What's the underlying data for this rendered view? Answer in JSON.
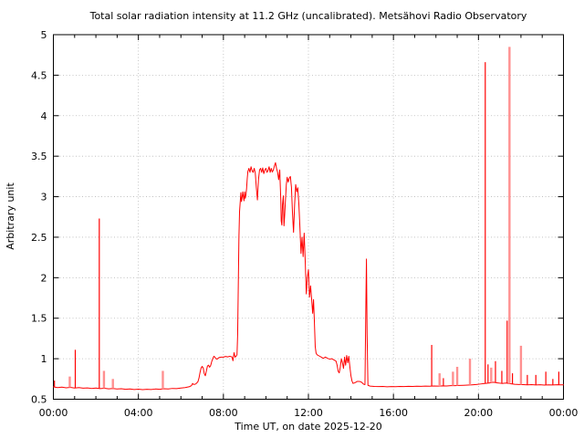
{
  "chart_data": {
    "type": "line",
    "title": "Total solar radiation intensity at 11.2 GHz (uncalibrated). Metsähovi Radio Observatory",
    "xlabel": "Time UT, on date 2025-12-20",
    "ylabel": "Arbitrary unit",
    "x_range_hours": [
      0,
      24
    ],
    "ylim": [
      0.5,
      5
    ],
    "x_tick_hours": [
      0,
      4,
      8,
      12,
      16,
      20,
      24
    ],
    "x_tick_labels": [
      "00:00",
      "04:00",
      "08:00",
      "12:00",
      "16:00",
      "20:00",
      "00:00"
    ],
    "x_minor_tick_every_hours": 1,
    "y_ticks": [
      0.5,
      1,
      1.5,
      2,
      2.5,
      3,
      3.5,
      4,
      4.5,
      5
    ],
    "y_tick_labels": [
      "0.5",
      "1",
      "1.5",
      "2",
      "2.5",
      "3",
      "3.5",
      "4",
      "4.5",
      "5"
    ],
    "grid": "dotted",
    "legend": "none",
    "line_color": "#ff0000",
    "soft_line_color": "#ff9090",
    "grid_color": "#b8b8b8",
    "axis_color": "#000000",
    "series": [
      {
        "name": "solar radiation intensity",
        "points": [
          [
            0.0,
            0.652
          ],
          [
            0.2,
            0.644
          ],
          [
            0.4,
            0.649
          ],
          [
            0.6,
            0.641
          ],
          [
            0.8,
            0.646
          ],
          [
            1.0,
            0.638
          ],
          [
            1.2,
            0.643
          ],
          [
            1.4,
            0.636
          ],
          [
            1.6,
            0.64
          ],
          [
            1.8,
            0.633
          ],
          [
            2.0,
            0.638
          ],
          [
            2.2,
            0.631
          ],
          [
            2.4,
            0.635
          ],
          [
            2.6,
            0.628
          ],
          [
            2.8,
            0.632
          ],
          [
            3.0,
            0.626
          ],
          [
            3.2,
            0.629
          ],
          [
            3.4,
            0.623
          ],
          [
            3.6,
            0.627
          ],
          [
            3.8,
            0.62
          ],
          [
            4.0,
            0.624
          ],
          [
            4.2,
            0.618
          ],
          [
            4.4,
            0.623
          ],
          [
            4.6,
            0.62
          ],
          [
            4.8,
            0.626
          ],
          [
            5.0,
            0.623
          ],
          [
            5.2,
            0.629
          ],
          [
            5.4,
            0.627
          ],
          [
            5.6,
            0.633
          ],
          [
            5.8,
            0.631
          ],
          [
            6.0,
            0.638
          ],
          [
            6.2,
            0.644
          ],
          [
            6.4,
            0.655
          ],
          [
            6.5,
            0.668
          ],
          [
            6.55,
            0.695
          ],
          [
            6.6,
            0.682
          ],
          [
            6.7,
            0.688
          ],
          [
            6.8,
            0.715
          ],
          [
            6.85,
            0.76
          ],
          [
            6.9,
            0.83
          ],
          [
            6.95,
            0.885
          ],
          [
            7.0,
            0.905
          ],
          [
            7.05,
            0.885
          ],
          [
            7.1,
            0.815
          ],
          [
            7.15,
            0.79
          ],
          [
            7.2,
            0.85
          ],
          [
            7.25,
            0.91
          ],
          [
            7.3,
            0.92
          ],
          [
            7.35,
            0.895
          ],
          [
            7.4,
            0.915
          ],
          [
            7.45,
            0.965
          ],
          [
            7.5,
            1.0
          ],
          [
            7.55,
            1.03
          ],
          [
            7.6,
            1.02
          ],
          [
            7.65,
            1.0
          ],
          [
            7.7,
            0.995
          ],
          [
            7.75,
            1.005
          ],
          [
            7.8,
            1.015
          ],
          [
            7.9,
            1.02
          ],
          [
            8.0,
            1.02
          ],
          [
            8.1,
            1.028
          ],
          [
            8.2,
            1.022
          ],
          [
            8.3,
            1.03
          ],
          [
            8.4,
            1.022
          ],
          [
            8.45,
            0.975
          ],
          [
            8.5,
            1.075
          ],
          [
            8.55,
            1.02
          ],
          [
            8.6,
            1.03
          ],
          [
            8.64,
            1.05
          ],
          [
            8.67,
            1.3
          ],
          [
            8.7,
            1.9
          ],
          [
            8.73,
            2.5
          ],
          [
            8.76,
            2.82
          ],
          [
            8.79,
            2.93
          ],
          [
            8.82,
            3.05
          ],
          [
            8.85,
            2.94
          ],
          [
            8.88,
            2.99
          ],
          [
            8.91,
            3.06
          ],
          [
            8.94,
            3.0
          ],
          [
            8.97,
            2.95
          ],
          [
            9.0,
            3.06
          ],
          [
            9.03,
            2.98
          ],
          [
            9.06,
            3.02
          ],
          [
            9.09,
            3.1
          ],
          [
            9.12,
            3.22
          ],
          [
            9.15,
            3.31
          ],
          [
            9.2,
            3.35
          ],
          [
            9.25,
            3.3
          ],
          [
            9.3,
            3.37
          ],
          [
            9.35,
            3.32
          ],
          [
            9.4,
            3.3
          ],
          [
            9.45,
            3.35
          ],
          [
            9.5,
            3.29
          ],
          [
            9.55,
            3.11
          ],
          [
            9.6,
            2.96
          ],
          [
            9.65,
            3.21
          ],
          [
            9.7,
            3.33
          ],
          [
            9.75,
            3.35
          ],
          [
            9.8,
            3.3
          ],
          [
            9.85,
            3.355
          ],
          [
            9.9,
            3.285
          ],
          [
            9.95,
            3.33
          ],
          [
            10.0,
            3.35
          ],
          [
            10.05,
            3.3
          ],
          [
            10.1,
            3.325
          ],
          [
            10.15,
            3.37
          ],
          [
            10.2,
            3.3
          ],
          [
            10.25,
            3.35
          ],
          [
            10.3,
            3.305
          ],
          [
            10.35,
            3.33
          ],
          [
            10.4,
            3.38
          ],
          [
            10.45,
            3.42
          ],
          [
            10.5,
            3.35
          ],
          [
            10.55,
            3.3
          ],
          [
            10.6,
            3.21
          ],
          [
            10.65,
            3.33
          ],
          [
            10.7,
            2.96
          ],
          [
            10.72,
            2.7
          ],
          [
            10.75,
            2.65
          ],
          [
            10.78,
            2.9
          ],
          [
            10.82,
            3.01
          ],
          [
            10.85,
            2.64
          ],
          [
            10.88,
            2.76
          ],
          [
            10.92,
            2.96
          ],
          [
            10.96,
            3.15
          ],
          [
            11.0,
            3.24
          ],
          [
            11.05,
            3.18
          ],
          [
            11.1,
            3.23
          ],
          [
            11.15,
            3.25
          ],
          [
            11.2,
            3.12
          ],
          [
            11.25,
            2.8
          ],
          [
            11.3,
            2.56
          ],
          [
            11.35,
            2.9
          ],
          [
            11.4,
            3.15
          ],
          [
            11.45,
            3.06
          ],
          [
            11.5,
            3.11
          ],
          [
            11.55,
            2.91
          ],
          [
            11.6,
            2.62
          ],
          [
            11.65,
            2.3
          ],
          [
            11.7,
            2.5
          ],
          [
            11.75,
            2.26
          ],
          [
            11.8,
            2.55
          ],
          [
            11.85,
            2.2
          ],
          [
            11.9,
            1.8
          ],
          [
            11.95,
            2.0
          ],
          [
            12.0,
            2.1
          ],
          [
            12.05,
            1.76
          ],
          [
            12.1,
            1.9
          ],
          [
            12.15,
            1.74
          ],
          [
            12.2,
            1.56
          ],
          [
            12.24,
            1.73
          ],
          [
            12.28,
            1.46
          ],
          [
            12.32,
            1.15
          ],
          [
            12.36,
            1.07
          ],
          [
            12.4,
            1.05
          ],
          [
            12.5,
            1.035
          ],
          [
            12.6,
            1.02
          ],
          [
            12.7,
            1.005
          ],
          [
            12.8,
            1.02
          ],
          [
            12.9,
            1.005
          ],
          [
            13.0,
            0.995
          ],
          [
            13.1,
            1.0
          ],
          [
            13.2,
            0.985
          ],
          [
            13.3,
            0.97
          ],
          [
            13.35,
            0.92
          ],
          [
            13.4,
            0.845
          ],
          [
            13.45,
            0.825
          ],
          [
            13.5,
            0.9
          ],
          [
            13.55,
            1.0
          ],
          [
            13.6,
            0.95
          ],
          [
            13.65,
            0.88
          ],
          [
            13.7,
            1.02
          ],
          [
            13.75,
            0.92
          ],
          [
            13.8,
            1.04
          ],
          [
            13.85,
            0.95
          ],
          [
            13.9,
            1.03
          ],
          [
            13.95,
            0.9
          ],
          [
            14.0,
            0.79
          ],
          [
            14.05,
            0.725
          ],
          [
            14.1,
            0.695
          ],
          [
            14.2,
            0.705
          ],
          [
            14.3,
            0.72
          ],
          [
            14.4,
            0.72
          ],
          [
            14.5,
            0.71
          ],
          [
            14.6,
            0.685
          ],
          [
            14.66,
            0.68
          ],
          [
            14.7,
            1.6
          ],
          [
            14.73,
            2.23
          ],
          [
            14.76,
            1.3
          ],
          [
            14.8,
            0.672
          ],
          [
            14.9,
            0.662
          ],
          [
            15.1,
            0.658
          ],
          [
            15.3,
            0.656
          ],
          [
            15.5,
            0.657
          ],
          [
            15.7,
            0.654
          ],
          [
            15.9,
            0.656
          ],
          [
            16.1,
            0.655
          ],
          [
            16.3,
            0.658
          ],
          [
            16.5,
            0.656
          ],
          [
            16.7,
            0.659
          ],
          [
            16.9,
            0.657
          ],
          [
            17.1,
            0.66
          ],
          [
            17.3,
            0.659
          ],
          [
            17.5,
            0.662
          ],
          [
            17.7,
            0.66
          ],
          [
            17.9,
            0.663
          ],
          [
            18.1,
            0.662
          ],
          [
            18.3,
            0.665
          ],
          [
            18.5,
            0.664
          ],
          [
            18.7,
            0.667
          ],
          [
            18.9,
            0.668
          ],
          [
            19.1,
            0.67
          ],
          [
            19.3,
            0.672
          ],
          [
            19.5,
            0.675
          ],
          [
            19.7,
            0.678
          ],
          [
            19.9,
            0.682
          ],
          [
            20.1,
            0.688
          ],
          [
            20.3,
            0.694
          ],
          [
            20.5,
            0.7
          ],
          [
            20.7,
            0.71
          ],
          [
            20.9,
            0.702
          ],
          [
            21.1,
            0.695
          ],
          [
            21.3,
            0.7
          ],
          [
            21.5,
            0.692
          ],
          [
            21.7,
            0.685
          ],
          [
            21.9,
            0.682
          ],
          [
            22.1,
            0.68
          ],
          [
            22.3,
            0.677
          ],
          [
            22.5,
            0.68
          ],
          [
            22.7,
            0.676
          ],
          [
            22.9,
            0.679
          ],
          [
            23.1,
            0.675
          ],
          [
            23.3,
            0.678
          ],
          [
            23.5,
            0.676
          ],
          [
            23.7,
            0.679
          ],
          [
            23.9,
            0.677
          ],
          [
            24.0,
            0.678
          ]
        ]
      }
    ],
    "spikes": [
      {
        "t": 0.05,
        "peak": 0.73
      },
      {
        "t": 0.77,
        "peak": 0.78,
        "soft": true
      },
      {
        "t": 1.03,
        "peak": 1.11
      },
      {
        "t": 2.16,
        "peak": 2.73
      },
      {
        "t": 2.38,
        "peak": 0.85,
        "soft": true
      },
      {
        "t": 2.8,
        "peak": 0.75,
        "soft": true
      },
      {
        "t": 5.15,
        "peak": 0.85,
        "soft": true
      },
      {
        "t": 17.8,
        "peak": 1.17
      },
      {
        "t": 18.17,
        "peak": 0.82,
        "soft": true
      },
      {
        "t": 18.35,
        "peak": 0.76
      },
      {
        "t": 18.8,
        "peak": 0.84,
        "soft": true
      },
      {
        "t": 19.0,
        "peak": 0.9,
        "soft": true
      },
      {
        "t": 19.6,
        "peak": 1.0,
        "soft": true
      },
      {
        "t": 20.32,
        "peak": 4.66
      },
      {
        "t": 20.45,
        "peak": 0.93
      },
      {
        "t": 20.6,
        "peak": 0.89,
        "soft": true
      },
      {
        "t": 20.8,
        "peak": 0.97
      },
      {
        "t": 21.1,
        "peak": 0.85
      },
      {
        "t": 21.35,
        "peak": 1.47
      },
      {
        "t": 21.46,
        "peak": 4.85,
        "soft": true
      },
      {
        "t": 21.6,
        "peak": 0.82
      },
      {
        "t": 22.0,
        "peak": 1.16,
        "soft": true
      },
      {
        "t": 22.3,
        "peak": 0.8
      },
      {
        "t": 22.7,
        "peak": 0.8
      },
      {
        "t": 23.17,
        "peak": 0.84
      },
      {
        "t": 23.5,
        "peak": 0.75
      },
      {
        "t": 23.78,
        "peak": 0.84
      }
    ]
  }
}
